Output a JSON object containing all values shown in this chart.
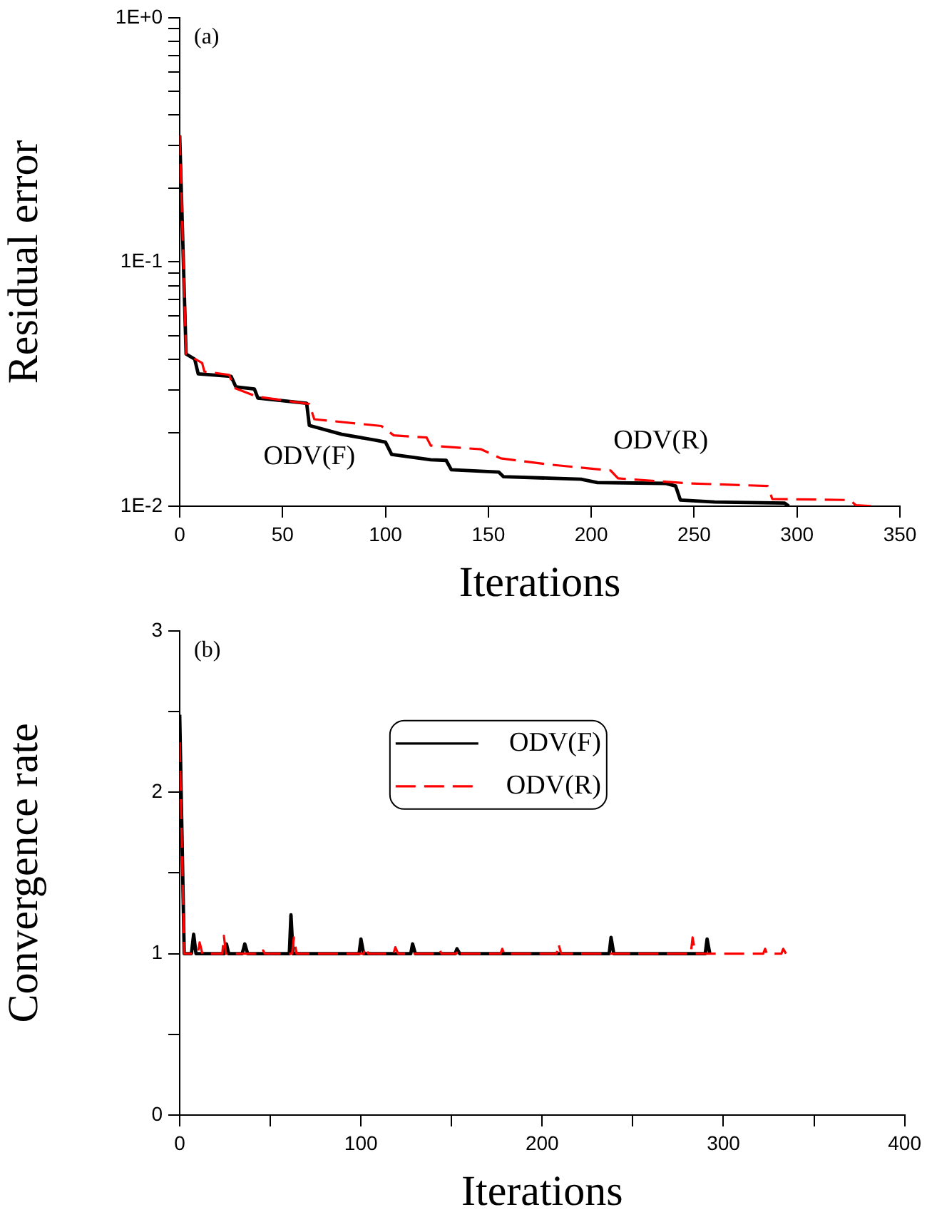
{
  "chart_data": [
    {
      "type": "line",
      "xlabel": "Iterations",
      "ylabel": "Residual error",
      "log": "y",
      "marker": "none",
      "xlim": [
        0,
        350
      ],
      "xticks": [
        0,
        50,
        100,
        150,
        200,
        250,
        300,
        350
      ],
      "ylim": [
        0.01,
        1
      ],
      "yticks": [
        {
          "value": 0.01,
          "label": "1E-2"
        },
        {
          "value": 0.02,
          "label": null
        },
        {
          "value": 0.03,
          "label": null
        },
        {
          "value": 0.04,
          "label": null
        },
        {
          "value": 0.05,
          "label": null
        },
        {
          "value": 0.06,
          "label": null
        },
        {
          "value": 0.07,
          "label": null
        },
        {
          "value": 0.08,
          "label": null
        },
        {
          "value": 0.09,
          "label": null
        },
        {
          "value": 0.1,
          "label": "1E-1"
        },
        {
          "value": 0.2,
          "label": null
        },
        {
          "value": 0.3,
          "label": null
        },
        {
          "value": 0.4,
          "label": null
        },
        {
          "value": 0.5,
          "label": null
        },
        {
          "value": 0.6,
          "label": null
        },
        {
          "value": 0.7,
          "label": null
        },
        {
          "value": 0.8,
          "label": null
        },
        {
          "value": 0.9,
          "label": null
        },
        {
          "value": 1,
          "label": "1E+0"
        }
      ],
      "annotations": [
        "(a)"
      ],
      "series": [
        {
          "name": "ODV(F)",
          "color": "#000000",
          "line_style": "solid",
          "x": [
            0,
            3.1,
            7.3,
            9,
            25,
            27.3,
            36.3,
            38,
            61.7,
            63,
            78.7,
            95.6,
            100,
            103,
            122,
            129.5,
            132,
            155,
            157.4,
            195,
            203,
            236,
            241,
            243.3,
            260,
            294,
            296
          ],
          "values": [
            0.33,
            0.042,
            0.04,
            0.0348,
            0.034,
            0.0308,
            0.0302,
            0.0277,
            0.0264,
            0.0214,
            0.0197,
            0.0186,
            0.0183,
            0.0163,
            0.0155,
            0.0154,
            0.0141,
            0.0138,
            0.0132,
            0.0129,
            0.0125,
            0.0124,
            0.0121,
            0.0106,
            0.0104,
            0.0103,
            0.01
          ]
        },
        {
          "name": "ODV(R)",
          "color": "#ff0000",
          "line_style": "dashed",
          "x": [
            0,
            3.1,
            10.9,
            12,
            24,
            26.6,
            37.5,
            63,
            65.4,
            98,
            104,
            120,
            122,
            146.5,
            156,
            180,
            209.4,
            213,
            248,
            285.7,
            288,
            325.7,
            328.6,
            337
          ],
          "values": [
            0.33,
            0.042,
            0.0386,
            0.0356,
            0.0345,
            0.0305,
            0.0281,
            0.0262,
            0.0227,
            0.0213,
            0.0195,
            0.0191,
            0.0177,
            0.0171,
            0.0157,
            0.0148,
            0.014,
            0.013,
            0.0124,
            0.0121,
            0.0107,
            0.0106,
            0.0101,
            0.01
          ]
        }
      ]
    },
    {
      "type": "line",
      "xlabel": "Iterations",
      "ylabel": "Convergence rate",
      "marker": "none",
      "legend": "top",
      "xlim": [
        0,
        400
      ],
      "xticks": [
        0,
        {
          "value": 50,
          "label": null
        },
        100,
        {
          "value": 150,
          "label": null
        },
        200,
        {
          "value": 250,
          "label": null
        },
        300,
        {
          "value": 350,
          "label": null
        },
        400
      ],
      "ylim": [
        0,
        3
      ],
      "yticks": [
        0,
        {
          "value": 0.5,
          "label": null
        },
        1,
        {
          "value": 1.5,
          "label": null
        },
        2,
        {
          "value": 2.5,
          "label": null
        },
        3
      ],
      "annotations": [
        "(b)"
      ],
      "series": [
        {
          "name": "ODV(F)",
          "color": "#000000",
          "line_style": "solid",
          "x": [
            0,
            2.5,
            6.5,
            7.7,
            9,
            24.5,
            25.8,
            27,
            34.5,
            35.9,
            37.5,
            60.5,
            61.4,
            62.5,
            99,
            100,
            101.5,
            127.5,
            128.5,
            130,
            152,
            153,
            154.5,
            237,
            238,
            239.5,
            290,
            291,
            292.5
          ],
          "values": [
            2.48,
            1,
            1,
            1.12,
            1,
            1,
            1.06,
            1,
            1,
            1.06,
            1,
            1,
            1.24,
            1,
            1,
            1.09,
            1,
            1,
            1.06,
            1,
            1,
            1.03,
            1,
            1,
            1.1,
            1,
            1,
            1.09,
            1
          ]
        },
        {
          "name": "ODV(R)",
          "color": "#ff0000",
          "line_style": "dashed",
          "x": [
            0,
            2.5,
            10,
            11,
            12.5,
            23.5,
            24.4,
            25.5,
            45,
            46,
            47,
            62,
            63,
            64.5,
            101.5,
            102.5,
            104,
            118,
            119,
            120.5,
            142.5,
            143.5,
            144.5,
            152.7,
            153.7,
            155,
            177,
            178,
            179,
            208,
            209,
            210.5,
            282,
            283,
            284.5,
            322,
            323,
            324,
            332,
            333,
            334.5
          ],
          "values": [
            2.31,
            1,
            1,
            1.07,
            1,
            1,
            1.11,
            1,
            1,
            1.02,
            1,
            1,
            1.1,
            1,
            1,
            1.04,
            1,
            1,
            1.04,
            1,
            1,
            1.02,
            1,
            1,
            1.03,
            1,
            1,
            1.03,
            1,
            1,
            1.06,
            1,
            1,
            1.1,
            1,
            1,
            1.03,
            1,
            1,
            1.03,
            1
          ]
        }
      ]
    }
  ]
}
